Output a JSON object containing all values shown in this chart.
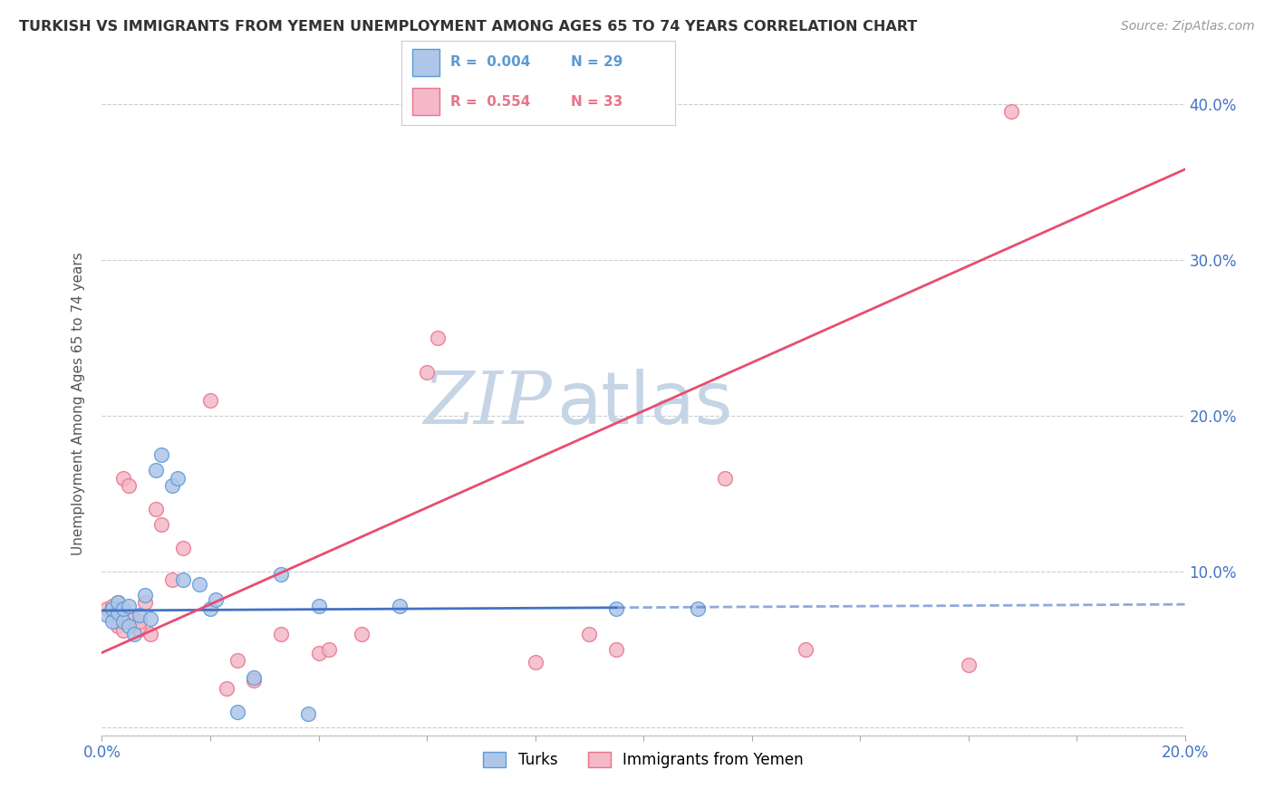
{
  "title": "TURKISH VS IMMIGRANTS FROM YEMEN UNEMPLOYMENT AMONG AGES 65 TO 74 YEARS CORRELATION CHART",
  "source": "Source: ZipAtlas.com",
  "ylabel": "Unemployment Among Ages 65 to 74 years",
  "xlim": [
    0.0,
    0.2
  ],
  "ylim": [
    -0.005,
    0.42
  ],
  "xticks": [
    0.0,
    0.02,
    0.04,
    0.06,
    0.08,
    0.1,
    0.12,
    0.14,
    0.16,
    0.18,
    0.2
  ],
  "yticks": [
    0.0,
    0.1,
    0.2,
    0.3,
    0.4
  ],
  "ytick_labels": [
    "",
    "10.0%",
    "20.0%",
    "30.0%",
    "40.0%"
  ],
  "turks_color": "#aec6e8",
  "turks_edge_color": "#5b9bd5",
  "yemen_color": "#f4b8c8",
  "yemen_edge_color": "#e8748a",
  "turks_line_color": "#4472c4",
  "yemen_line_color": "#e84d6f",
  "turks_R": "0.004",
  "turks_N": "29",
  "yemen_R": "0.554",
  "yemen_N": "33",
  "watermark_zip": "ZIP",
  "watermark_atlas": "atlas",
  "watermark_color_zip": "#c5d5e5",
  "watermark_color_atlas": "#c5d5e5",
  "turks_line_solid_end": 0.095,
  "turks_line_y_intercept": 0.075,
  "turks_line_slope": 0.02,
  "yemen_line_y_intercept": 0.048,
  "yemen_line_slope": 1.55,
  "turks_scatter_x": [
    0.001,
    0.002,
    0.002,
    0.003,
    0.003,
    0.004,
    0.004,
    0.005,
    0.005,
    0.006,
    0.007,
    0.008,
    0.009,
    0.01,
    0.011,
    0.013,
    0.014,
    0.015,
    0.018,
    0.02,
    0.021,
    0.025,
    0.028,
    0.033,
    0.038,
    0.04,
    0.055,
    0.095,
    0.11
  ],
  "turks_scatter_y": [
    0.072,
    0.068,
    0.076,
    0.074,
    0.08,
    0.068,
    0.076,
    0.065,
    0.078,
    0.06,
    0.072,
    0.085,
    0.07,
    0.165,
    0.175,
    0.155,
    0.16,
    0.095,
    0.092,
    0.076,
    0.082,
    0.01,
    0.032,
    0.098,
    0.009,
    0.078,
    0.078,
    0.076,
    0.076
  ],
  "yemen_scatter_x": [
    0.001,
    0.002,
    0.003,
    0.003,
    0.004,
    0.004,
    0.005,
    0.006,
    0.007,
    0.007,
    0.008,
    0.009,
    0.01,
    0.011,
    0.013,
    0.015,
    0.02,
    0.023,
    0.025,
    0.028,
    0.033,
    0.04,
    0.042,
    0.048,
    0.06,
    0.062,
    0.08,
    0.09,
    0.095,
    0.115,
    0.13,
    0.16,
    0.168
  ],
  "yemen_scatter_y": [
    0.076,
    0.078,
    0.065,
    0.08,
    0.062,
    0.16,
    0.155,
    0.07,
    0.063,
    0.068,
    0.08,
    0.06,
    0.14,
    0.13,
    0.095,
    0.115,
    0.21,
    0.025,
    0.043,
    0.03,
    0.06,
    0.048,
    0.05,
    0.06,
    0.228,
    0.25,
    0.042,
    0.06,
    0.05,
    0.16,
    0.05,
    0.04,
    0.395
  ]
}
